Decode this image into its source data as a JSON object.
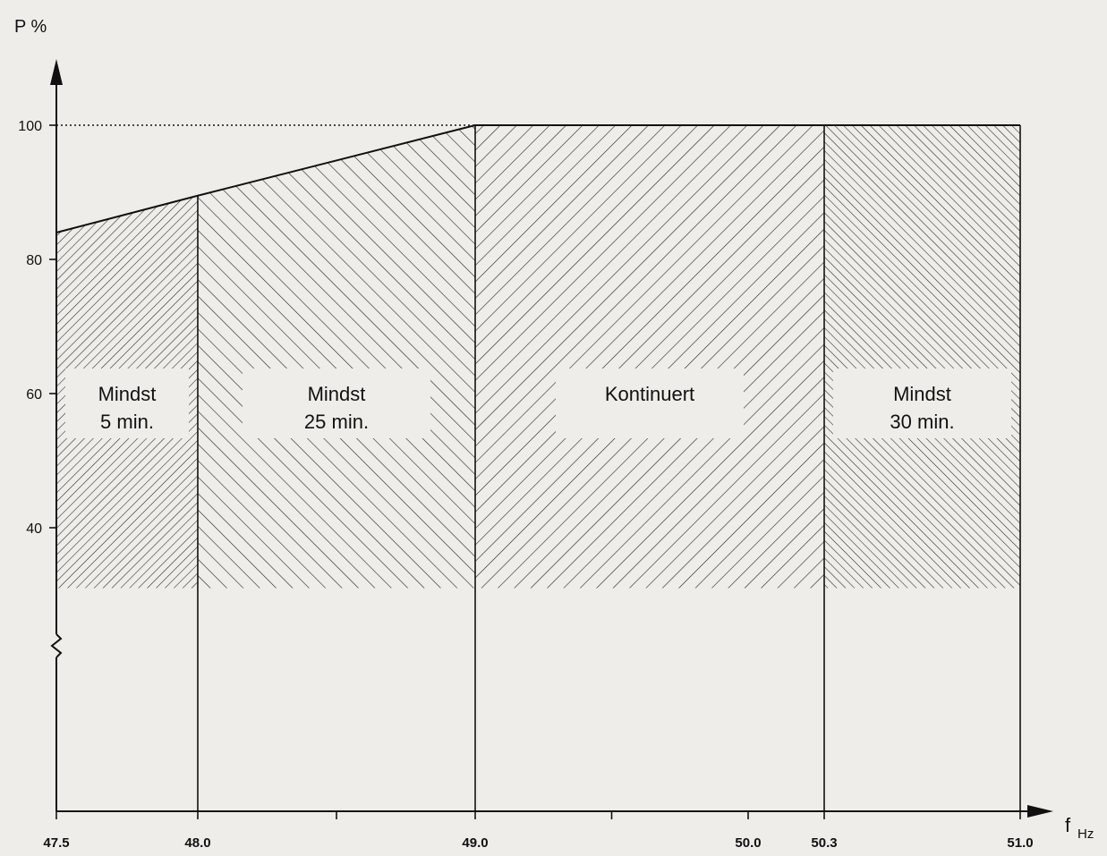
{
  "chart_data": {
    "type": "area",
    "ylabel": "P %",
    "xlabel": "f",
    "xlabel_unit": "Hz",
    "x_ticks": [
      "47.5",
      "48.0",
      "49.0",
      "50.0",
      "50.3",
      "51.0"
    ],
    "y_ticks": [
      "100",
      "80",
      "60",
      "40"
    ],
    "xlim": [
      47.5,
      51.0
    ],
    "ylim": [
      0,
      100
    ],
    "y_axis_break": true,
    "reference_line": {
      "y": 100,
      "style": "dotted"
    },
    "boundary_points": [
      {
        "x": 47.5,
        "y": 84
      },
      {
        "x": 48.0,
        "y": 89.5
      },
      {
        "x": 49.0,
        "y": 100
      },
      {
        "x": 51.0,
        "y": 100
      }
    ],
    "regions": [
      {
        "x_start": 47.5,
        "x_end": 48.0,
        "label_line1": "Mindst",
        "label_line2": "5 min.",
        "hatch": "dense-forward"
      },
      {
        "x_start": 48.0,
        "x_end": 49.0,
        "label_line1": "Mindst",
        "label_line2": "25 min.",
        "hatch": "backward"
      },
      {
        "x_start": 49.0,
        "x_end": 50.3,
        "label_line1": "Kontinuert",
        "label_line2": "",
        "hatch": "forward"
      },
      {
        "x_start": 50.3,
        "x_end": 51.0,
        "label_line1": "Mindst",
        "label_line2": "30 min.",
        "hatch": "dense-backward"
      }
    ],
    "grid": false,
    "legend": "none"
  }
}
